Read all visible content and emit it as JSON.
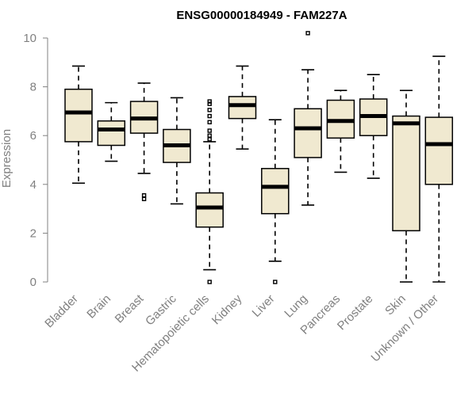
{
  "chart_data": {
    "type": "boxplot",
    "title": "ENSG00000184949 - FAM227A",
    "xlabel": "",
    "ylabel": "Expression",
    "ylim": [
      0,
      10
    ],
    "yticks": [
      0,
      2,
      4,
      6,
      8,
      10
    ],
    "grid": false,
    "categories": [
      "Bladder",
      "Brain",
      "Breast",
      "Gastric",
      "Hematopoietic cells",
      "Kidney",
      "Liver",
      "Lung",
      "Pancreas",
      "Prostate",
      "Skin",
      "Unknown / Other"
    ],
    "boxes": [
      {
        "category": "Bladder",
        "whisker_low": 4.05,
        "q1": 5.75,
        "median": 6.95,
        "q3": 7.9,
        "whisker_high": 8.85,
        "outliers": []
      },
      {
        "category": "Brain",
        "whisker_low": 4.95,
        "q1": 5.6,
        "median": 6.25,
        "q3": 6.6,
        "whisker_high": 7.35,
        "outliers": []
      },
      {
        "category": "Breast",
        "whisker_low": 4.45,
        "q1": 6.1,
        "median": 6.7,
        "q3": 7.4,
        "whisker_high": 8.15,
        "outliers": [
          3.4,
          3.55
        ]
      },
      {
        "category": "Gastric",
        "whisker_low": 3.2,
        "q1": 4.9,
        "median": 5.6,
        "q3": 6.25,
        "whisker_high": 7.55,
        "outliers": []
      },
      {
        "category": "Hematopoietic cells",
        "whisker_low": 0.5,
        "q1": 2.25,
        "median": 3.05,
        "q3": 3.65,
        "whisker_high": 5.75,
        "outliers": [
          0.0,
          5.85,
          6.0,
          6.2,
          6.55,
          6.8,
          7.05,
          7.3,
          7.4
        ]
      },
      {
        "category": "Kidney",
        "whisker_low": 5.45,
        "q1": 6.7,
        "median": 7.25,
        "q3": 7.6,
        "whisker_high": 8.85,
        "outliers": []
      },
      {
        "category": "Liver",
        "whisker_low": 0.85,
        "q1": 2.8,
        "median": 3.9,
        "q3": 4.65,
        "whisker_high": 6.65,
        "outliers": [
          0.0
        ]
      },
      {
        "category": "Lung",
        "whisker_low": 3.15,
        "q1": 5.1,
        "median": 6.3,
        "q3": 7.1,
        "whisker_high": 8.7,
        "outliers": [
          10.2
        ]
      },
      {
        "category": "Pancreas",
        "whisker_low": 4.5,
        "q1": 5.9,
        "median": 6.6,
        "q3": 7.45,
        "whisker_high": 7.85,
        "outliers": []
      },
      {
        "category": "Prostate",
        "whisker_low": 4.25,
        "q1": 6.0,
        "median": 6.8,
        "q3": 7.5,
        "whisker_high": 8.5,
        "outliers": []
      },
      {
        "category": "Skin",
        "whisker_low": 0.0,
        "q1": 2.1,
        "median": 6.5,
        "q3": 6.8,
        "whisker_high": 7.85,
        "outliers": []
      },
      {
        "category": "Unknown / Other",
        "whisker_low": 0.0,
        "q1": 4.0,
        "median": 5.65,
        "q3": 6.75,
        "whisker_high": 9.25,
        "outliers": []
      }
    ],
    "colors": {
      "box_fill": "#f0e9d0",
      "box_stroke": "#000000",
      "axis": "#808080",
      "text": "#808080"
    }
  }
}
